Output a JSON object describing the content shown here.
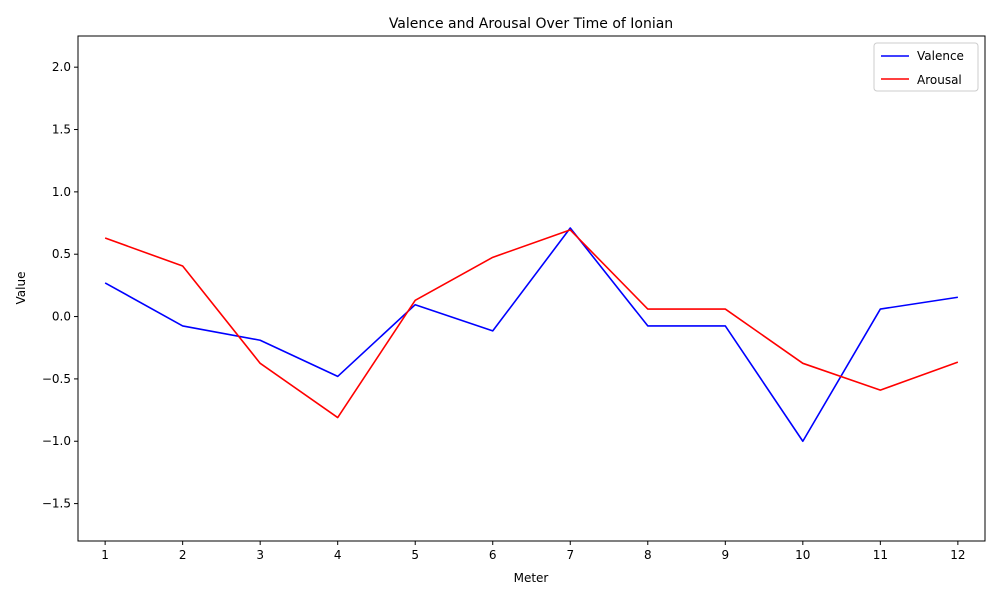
{
  "chart_data": {
    "type": "line",
    "title": "Valence and Arousal Over Time of Ionian",
    "xlabel": "Meter",
    "ylabel": "Value",
    "x": [
      1,
      2,
      3,
      4,
      5,
      6,
      7,
      8,
      9,
      10,
      11,
      12
    ],
    "xticks": [
      "1",
      "2",
      "3",
      "4",
      "5",
      "6",
      "7",
      "8",
      "9",
      "10",
      "11",
      "12"
    ],
    "xlim": [
      0.65,
      12.35
    ],
    "ylim": [
      -1.8,
      2.25
    ],
    "yticks": [
      "−1.5",
      "−1.0",
      "−0.5",
      "0.0",
      "0.5",
      "1.0",
      "1.5",
      "2.0"
    ],
    "ytick_values": [
      -1.5,
      -1.0,
      -0.5,
      0.0,
      0.5,
      1.0,
      1.5,
      2.0
    ],
    "grid": false,
    "legend_position": "top-right",
    "series": [
      {
        "name": "Valence",
        "color": "#0000ff",
        "values": [
          0.27,
          -0.075,
          -0.19,
          -0.48,
          0.095,
          -0.115,
          0.71,
          -0.075,
          -0.075,
          -1.0,
          0.06,
          0.155
        ]
      },
      {
        "name": "Arousal",
        "color": "#ff0000",
        "values": [
          0.63,
          0.405,
          -0.375,
          -0.81,
          0.13,
          0.475,
          0.695,
          0.06,
          0.06,
          -0.375,
          -0.59,
          -0.365
        ]
      }
    ]
  }
}
